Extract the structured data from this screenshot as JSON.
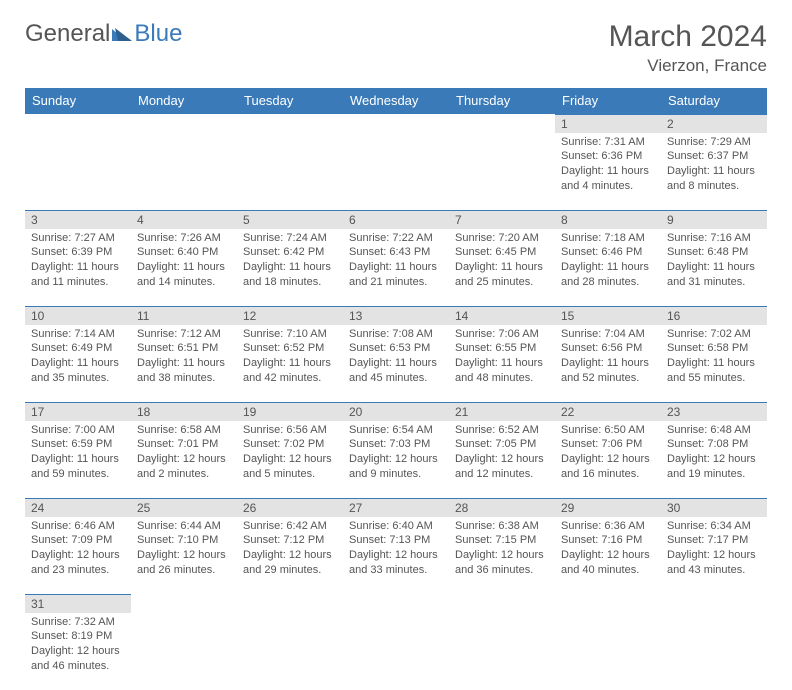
{
  "logo": {
    "part1": "General",
    "part2": "Blue"
  },
  "title": "March 2024",
  "location": "Vierzon, France",
  "colors": {
    "headerBg": "#3a7ab8",
    "daynumBg": "#e3e3e3",
    "text": "#555555",
    "pageBg": "#ffffff"
  },
  "weekdays": [
    "Sunday",
    "Monday",
    "Tuesday",
    "Wednesday",
    "Thursday",
    "Friday",
    "Saturday"
  ],
  "weeks": [
    [
      null,
      null,
      null,
      null,
      null,
      {
        "d": "1",
        "sr": "Sunrise: 7:31 AM",
        "ss": "Sunset: 6:36 PM",
        "dl": "Daylight: 11 hours and 4 minutes."
      },
      {
        "d": "2",
        "sr": "Sunrise: 7:29 AM",
        "ss": "Sunset: 6:37 PM",
        "dl": "Daylight: 11 hours and 8 minutes."
      }
    ],
    [
      {
        "d": "3",
        "sr": "Sunrise: 7:27 AM",
        "ss": "Sunset: 6:39 PM",
        "dl": "Daylight: 11 hours and 11 minutes."
      },
      {
        "d": "4",
        "sr": "Sunrise: 7:26 AM",
        "ss": "Sunset: 6:40 PM",
        "dl": "Daylight: 11 hours and 14 minutes."
      },
      {
        "d": "5",
        "sr": "Sunrise: 7:24 AM",
        "ss": "Sunset: 6:42 PM",
        "dl": "Daylight: 11 hours and 18 minutes."
      },
      {
        "d": "6",
        "sr": "Sunrise: 7:22 AM",
        "ss": "Sunset: 6:43 PM",
        "dl": "Daylight: 11 hours and 21 minutes."
      },
      {
        "d": "7",
        "sr": "Sunrise: 7:20 AM",
        "ss": "Sunset: 6:45 PM",
        "dl": "Daylight: 11 hours and 25 minutes."
      },
      {
        "d": "8",
        "sr": "Sunrise: 7:18 AM",
        "ss": "Sunset: 6:46 PM",
        "dl": "Daylight: 11 hours and 28 minutes."
      },
      {
        "d": "9",
        "sr": "Sunrise: 7:16 AM",
        "ss": "Sunset: 6:48 PM",
        "dl": "Daylight: 11 hours and 31 minutes."
      }
    ],
    [
      {
        "d": "10",
        "sr": "Sunrise: 7:14 AM",
        "ss": "Sunset: 6:49 PM",
        "dl": "Daylight: 11 hours and 35 minutes."
      },
      {
        "d": "11",
        "sr": "Sunrise: 7:12 AM",
        "ss": "Sunset: 6:51 PM",
        "dl": "Daylight: 11 hours and 38 minutes."
      },
      {
        "d": "12",
        "sr": "Sunrise: 7:10 AM",
        "ss": "Sunset: 6:52 PM",
        "dl": "Daylight: 11 hours and 42 minutes."
      },
      {
        "d": "13",
        "sr": "Sunrise: 7:08 AM",
        "ss": "Sunset: 6:53 PM",
        "dl": "Daylight: 11 hours and 45 minutes."
      },
      {
        "d": "14",
        "sr": "Sunrise: 7:06 AM",
        "ss": "Sunset: 6:55 PM",
        "dl": "Daylight: 11 hours and 48 minutes."
      },
      {
        "d": "15",
        "sr": "Sunrise: 7:04 AM",
        "ss": "Sunset: 6:56 PM",
        "dl": "Daylight: 11 hours and 52 minutes."
      },
      {
        "d": "16",
        "sr": "Sunrise: 7:02 AM",
        "ss": "Sunset: 6:58 PM",
        "dl": "Daylight: 11 hours and 55 minutes."
      }
    ],
    [
      {
        "d": "17",
        "sr": "Sunrise: 7:00 AM",
        "ss": "Sunset: 6:59 PM",
        "dl": "Daylight: 11 hours and 59 minutes."
      },
      {
        "d": "18",
        "sr": "Sunrise: 6:58 AM",
        "ss": "Sunset: 7:01 PM",
        "dl": "Daylight: 12 hours and 2 minutes."
      },
      {
        "d": "19",
        "sr": "Sunrise: 6:56 AM",
        "ss": "Sunset: 7:02 PM",
        "dl": "Daylight: 12 hours and 5 minutes."
      },
      {
        "d": "20",
        "sr": "Sunrise: 6:54 AM",
        "ss": "Sunset: 7:03 PM",
        "dl": "Daylight: 12 hours and 9 minutes."
      },
      {
        "d": "21",
        "sr": "Sunrise: 6:52 AM",
        "ss": "Sunset: 7:05 PM",
        "dl": "Daylight: 12 hours and 12 minutes."
      },
      {
        "d": "22",
        "sr": "Sunrise: 6:50 AM",
        "ss": "Sunset: 7:06 PM",
        "dl": "Daylight: 12 hours and 16 minutes."
      },
      {
        "d": "23",
        "sr": "Sunrise: 6:48 AM",
        "ss": "Sunset: 7:08 PM",
        "dl": "Daylight: 12 hours and 19 minutes."
      }
    ],
    [
      {
        "d": "24",
        "sr": "Sunrise: 6:46 AM",
        "ss": "Sunset: 7:09 PM",
        "dl": "Daylight: 12 hours and 23 minutes."
      },
      {
        "d": "25",
        "sr": "Sunrise: 6:44 AM",
        "ss": "Sunset: 7:10 PM",
        "dl": "Daylight: 12 hours and 26 minutes."
      },
      {
        "d": "26",
        "sr": "Sunrise: 6:42 AM",
        "ss": "Sunset: 7:12 PM",
        "dl": "Daylight: 12 hours and 29 minutes."
      },
      {
        "d": "27",
        "sr": "Sunrise: 6:40 AM",
        "ss": "Sunset: 7:13 PM",
        "dl": "Daylight: 12 hours and 33 minutes."
      },
      {
        "d": "28",
        "sr": "Sunrise: 6:38 AM",
        "ss": "Sunset: 7:15 PM",
        "dl": "Daylight: 12 hours and 36 minutes."
      },
      {
        "d": "29",
        "sr": "Sunrise: 6:36 AM",
        "ss": "Sunset: 7:16 PM",
        "dl": "Daylight: 12 hours and 40 minutes."
      },
      {
        "d": "30",
        "sr": "Sunrise: 6:34 AM",
        "ss": "Sunset: 7:17 PM",
        "dl": "Daylight: 12 hours and 43 minutes."
      }
    ],
    [
      {
        "d": "31",
        "sr": "Sunrise: 7:32 AM",
        "ss": "Sunset: 8:19 PM",
        "dl": "Daylight: 12 hours and 46 minutes."
      },
      null,
      null,
      null,
      null,
      null,
      null
    ]
  ]
}
